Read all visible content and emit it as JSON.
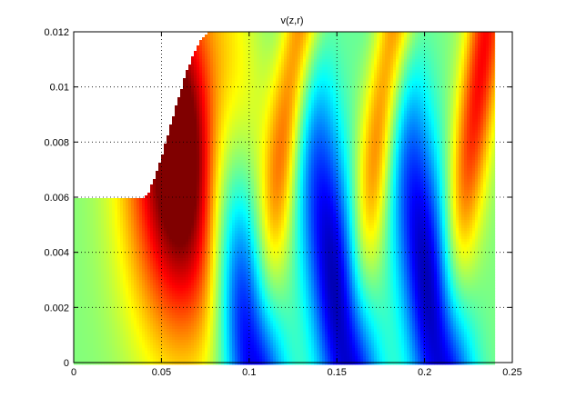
{
  "chart_data": {
    "type": "heatmap",
    "title": "v(z,r)",
    "xlabel": "",
    "ylabel": "",
    "xlim": [
      0,
      0.25
    ],
    "ylim": [
      0,
      0.012
    ],
    "grid": true,
    "colormap": "jet",
    "x_ticks": [
      {
        "value": 0,
        "label": "0"
      },
      {
        "value": 0.05,
        "label": "0.05"
      },
      {
        "value": 0.1,
        "label": "0.1"
      },
      {
        "value": 0.15,
        "label": "0.15"
      },
      {
        "value": 0.2,
        "label": "0.2"
      },
      {
        "value": 0.25,
        "label": "0.25"
      }
    ],
    "y_ticks": [
      {
        "value": 0,
        "label": "0"
      },
      {
        "value": 0.002,
        "label": "0.002"
      },
      {
        "value": 0.004,
        "label": "0.004"
      },
      {
        "value": 0.006,
        "label": "0.006"
      },
      {
        "value": 0.008,
        "label": "0.008"
      },
      {
        "value": 0.01,
        "label": "0.01"
      },
      {
        "value": 0.012,
        "label": "0.012"
      }
    ],
    "domain": {
      "z_end": 0.24,
      "inlet_radius": 0.006,
      "outer_radius": 0.012,
      "taper_start_z": 0.04,
      "taper_end_z": 0.078
    },
    "features": [
      {
        "kind": "positive-max",
        "z": 0.063,
        "r": 0.0078
      },
      {
        "kind": "negative-min",
        "z": 0.102,
        "r": 0.0
      },
      {
        "kind": "negative-min",
        "z": 0.155,
        "r": 0.0005
      },
      {
        "kind": "negative-min",
        "z": 0.208,
        "r": 0.0005
      },
      {
        "kind": "positive-ridge",
        "z": 0.128,
        "r": 0.0117
      },
      {
        "kind": "positive-ridge",
        "z": 0.181,
        "r": 0.0115
      },
      {
        "kind": "positive-ridge",
        "z": 0.233,
        "r": 0.011
      }
    ]
  }
}
